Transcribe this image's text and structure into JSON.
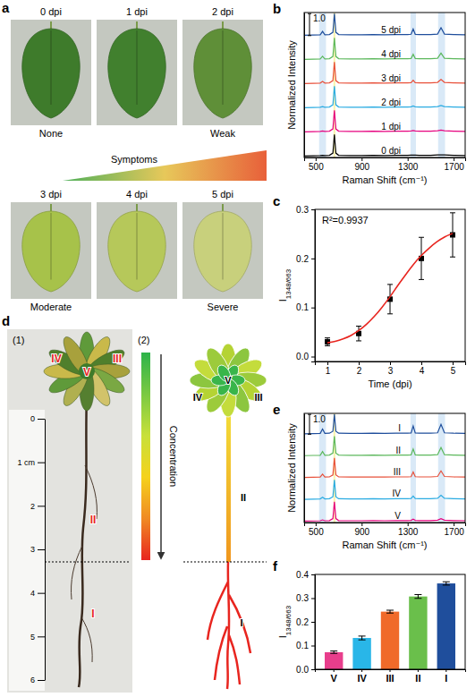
{
  "panel_a": {
    "panel_label": "a",
    "gradient_label": "Symptoms",
    "leaves": [
      {
        "label": "0 dpi",
        "color": "#3e7b2b",
        "symptom": "None"
      },
      {
        "label": "1 dpi",
        "color": "#41802e"
      },
      {
        "label": "2 dpi",
        "color": "#5f8f38",
        "symptom": "Weak"
      },
      {
        "label": "3 dpi",
        "color": "#a7c24a",
        "symptom": "Moderate"
      },
      {
        "label": "4 dpi",
        "color": "#b6c85a"
      },
      {
        "label": "5 dpi",
        "color": "#c8d07c",
        "symptom": "Severe"
      }
    ]
  },
  "panel_d": {
    "panel_label": "d",
    "photo": {
      "label": "(1)",
      "ruler": {
        "lim": [
          0,
          6
        ],
        "ticks": [
          0,
          {
            "value": 1,
            "label": "1 cm"
          },
          2,
          3,
          4,
          5,
          6
        ]
      },
      "regions": [
        "I",
        "II",
        "III",
        "IV",
        "V"
      ]
    },
    "diagram": {
      "label": "(2)",
      "colorbar_label": "Concentration",
      "regions": [
        "I",
        "II",
        "III",
        "IV",
        "V"
      ]
    }
  },
  "chart_data": [
    {
      "type": "spectra",
      "panel_label": "b",
      "x_label": "Raman Shift (cm⁻¹)",
      "y_label": "Normalized Intensity",
      "xlim": [
        400,
        1800
      ],
      "xticks": [
        500,
        900,
        1300,
        1700
      ],
      "ylim": [
        -0.05,
        1.05
      ],
      "tick_labels": "x",
      "scale_bar": {
        "value": 1.0,
        "label": "1.0"
      },
      "highlights": [
        {
          "range": [
            530,
            590
          ],
          "color": "#cfe3f5"
        },
        {
          "range": [
            655,
            671
          ],
          "color": "#f7f09a"
        },
        {
          "range": [
            1325,
            1372
          ],
          "color": "#cfe3f5"
        },
        {
          "range": [
            1565,
            1625
          ],
          "color": "#cfe3f5"
        }
      ],
      "x": [
        400,
        480,
        540,
        560,
        580,
        620,
        650,
        663,
        676,
        700,
        800,
        900,
        1000,
        1100,
        1200,
        1300,
        1330,
        1348,
        1366,
        1400,
        1500,
        1560,
        1590,
        1620,
        1700,
        1800
      ],
      "series": [
        {
          "name": "5 dpi",
          "color": "#1f4e9c",
          "values": [
            0.02,
            0.03,
            0.04,
            0.189,
            0.04,
            0.05,
            0.15,
            1.0,
            0.15,
            0.05,
            0.04,
            0.04,
            0.05,
            0.04,
            0.05,
            0.05,
            0.06,
            0.298,
            0.06,
            0.05,
            0.05,
            0.07,
            0.358,
            0.07,
            0.05,
            0.04
          ]
        },
        {
          "name": "4 dpi",
          "color": "#5cb85c",
          "values": [
            0.02,
            0.03,
            0.04,
            0.16,
            0.04,
            0.05,
            0.15,
            1.0,
            0.15,
            0.05,
            0.04,
            0.04,
            0.05,
            0.04,
            0.05,
            0.05,
            0.06,
            0.25,
            0.06,
            0.05,
            0.05,
            0.07,
            0.3,
            0.07,
            0.05,
            0.04
          ]
        },
        {
          "name": "3 dpi",
          "color": "#e8503a",
          "values": [
            0.02,
            0.03,
            0.04,
            0.11,
            0.04,
            0.05,
            0.15,
            1.0,
            0.15,
            0.05,
            0.04,
            0.04,
            0.05,
            0.04,
            0.05,
            0.05,
            0.06,
            0.167,
            0.06,
            0.05,
            0.05,
            0.07,
            0.2,
            0.07,
            0.05,
            0.04
          ]
        },
        {
          "name": "2 dpi",
          "color": "#29abe2",
          "values": [
            0.02,
            0.03,
            0.04,
            0.068,
            0.04,
            0.05,
            0.15,
            1.0,
            0.15,
            0.05,
            0.04,
            0.04,
            0.05,
            0.04,
            0.05,
            0.05,
            0.06,
            0.097,
            0.06,
            0.05,
            0.05,
            0.07,
            0.116,
            0.07,
            0.05,
            0.04
          ]
        },
        {
          "name": "1 dpi",
          "color": "#e6007e",
          "values": [
            0.02,
            0.03,
            0.04,
            0.058,
            0.04,
            0.05,
            0.15,
            1.0,
            0.15,
            0.05,
            0.04,
            0.04,
            0.05,
            0.04,
            0.05,
            0.05,
            0.06,
            0.08,
            0.06,
            0.05,
            0.05,
            0.07,
            0.096,
            0.07,
            0.05,
            0.04
          ]
        },
        {
          "name": "0 dpi",
          "color": "#000000",
          "values": [
            0.02,
            0.03,
            0.04,
            0.046,
            0.04,
            0.05,
            0.15,
            1.0,
            0.15,
            0.05,
            0.04,
            0.04,
            0.05,
            0.04,
            0.05,
            0.05,
            0.06,
            0.06,
            0.06,
            0.05,
            0.05,
            0.07,
            0.072,
            0.07,
            0.05,
            0.04
          ]
        }
      ]
    },
    {
      "type": "line",
      "panel_label": "c",
      "x_label": "Time (dpi)",
      "y_label": {
        "main": "I",
        "sub": "1348/663"
      },
      "xlim": [
        0.6,
        5.4
      ],
      "xticks": [
        1,
        2,
        3,
        4,
        5
      ],
      "ylim": [
        -0.01,
        0.3
      ],
      "yticks": [
        {
          "value": 0,
          "label": "0.0"
        },
        0.1,
        0.2,
        0.3
      ],
      "annotation": "R²=0.9937",
      "series": [
        {
          "type": "scatter",
          "marker": "square",
          "color": "#000000",
          "x": [
            1,
            2,
            3,
            4,
            5
          ],
          "values": [
            0.03,
            0.047,
            0.117,
            0.2,
            0.248
          ],
          "errors": [
            0.008,
            0.015,
            0.03,
            0.043,
            0.045
          ]
        },
        {
          "type": "line",
          "color": "#e8251f",
          "x": [
            1,
            1.25,
            1.5,
            1.75,
            2,
            2.25,
            2.5,
            2.75,
            3,
            3.25,
            3.5,
            3.75,
            4,
            4.25,
            4.5,
            4.75,
            5
          ],
          "values": [
            0.028,
            0.031,
            0.036,
            0.043,
            0.053,
            0.066,
            0.082,
            0.101,
            0.122,
            0.145,
            0.167,
            0.188,
            0.206,
            0.221,
            0.234,
            0.244,
            0.251
          ]
        }
      ]
    },
    {
      "type": "spectra",
      "panel_label": "e",
      "x_label": "Raman Shift (cm⁻¹)",
      "y_label": "Normalized Intensity",
      "xlim": [
        400,
        1800
      ],
      "xticks": [
        500,
        900,
        1300,
        1700
      ],
      "ylim": [
        -0.05,
        1.05
      ],
      "tick_labels": "x",
      "scale_bar": {
        "value": 1.0,
        "label": "1.0"
      },
      "highlights": [
        {
          "range": [
            530,
            590
          ],
          "color": "#cfe3f5"
        },
        {
          "range": [
            655,
            671
          ],
          "color": "#f7f09a"
        },
        {
          "range": [
            1325,
            1372
          ],
          "color": "#cfe3f5"
        },
        {
          "range": [
            1565,
            1625
          ],
          "color": "#cfe3f5"
        }
      ],
      "x": [
        400,
        480,
        540,
        560,
        580,
        620,
        650,
        663,
        676,
        700,
        800,
        900,
        1000,
        1100,
        1200,
        1300,
        1330,
        1348,
        1366,
        1400,
        1500,
        1560,
        1590,
        1620,
        1700,
        1800
      ],
      "series": [
        {
          "name": "I",
          "color": "#1f4e9c",
          "values": [
            0.02,
            0.03,
            0.04,
            0.257,
            0.04,
            0.05,
            0.15,
            1.0,
            0.15,
            0.05,
            0.04,
            0.04,
            0.05,
            0.04,
            0.05,
            0.05,
            0.06,
            0.412,
            0.06,
            0.05,
            0.05,
            0.07,
            0.494,
            0.07,
            0.05,
            0.04
          ]
        },
        {
          "name": "II",
          "color": "#5cb85c",
          "values": [
            0.02,
            0.03,
            0.04,
            0.224,
            0.04,
            0.05,
            0.15,
            1.0,
            0.15,
            0.05,
            0.04,
            0.04,
            0.05,
            0.04,
            0.05,
            0.05,
            0.06,
            0.357,
            0.06,
            0.05,
            0.05,
            0.07,
            0.428,
            0.07,
            0.05,
            0.04
          ]
        },
        {
          "name": "III",
          "color": "#e8503a",
          "values": [
            0.02,
            0.03,
            0.04,
            0.186,
            0.04,
            0.05,
            0.15,
            1.0,
            0.15,
            0.05,
            0.04,
            0.04,
            0.05,
            0.04,
            0.05,
            0.05,
            0.06,
            0.293,
            0.06,
            0.05,
            0.05,
            0.07,
            0.352,
            0.07,
            0.05,
            0.04
          ]
        },
        {
          "name": "IV",
          "color": "#29abe2",
          "values": [
            0.02,
            0.03,
            0.04,
            0.119,
            0.04,
            0.05,
            0.15,
            1.0,
            0.15,
            0.05,
            0.04,
            0.04,
            0.05,
            0.04,
            0.05,
            0.05,
            0.06,
            0.182,
            0.06,
            0.05,
            0.05,
            0.07,
            0.218,
            0.07,
            0.05,
            0.04
          ]
        },
        {
          "name": "V",
          "color": "#e6007e",
          "values": [
            0.02,
            0.03,
            0.04,
            0.083,
            0.04,
            0.05,
            0.15,
            1.0,
            0.15,
            0.05,
            0.04,
            0.04,
            0.05,
            0.04,
            0.05,
            0.05,
            0.06,
            0.122,
            0.06,
            0.05,
            0.05,
            0.07,
            0.146,
            0.07,
            0.05,
            0.04
          ]
        }
      ]
    },
    {
      "type": "bar",
      "panel_label": "f",
      "y_label": {
        "main": "I",
        "sub": "1348/663"
      },
      "categories": [
        "V",
        "IV",
        "III",
        "II",
        "I"
      ],
      "values": [
        0.072,
        0.132,
        0.243,
        0.307,
        0.362
      ],
      "errors": [
        0.005,
        0.008,
        0.006,
        0.008,
        0.007
      ],
      "colors": [
        "#e83e8c",
        "#29b6e8",
        "#f06a2a",
        "#6abf4b",
        "#1f4e9c"
      ],
      "ylim": [
        0,
        0.4
      ],
      "yticks": [
        {
          "value": 0,
          "label": "0.0"
        },
        0.1,
        0.2,
        0.3,
        0.4
      ]
    }
  ]
}
